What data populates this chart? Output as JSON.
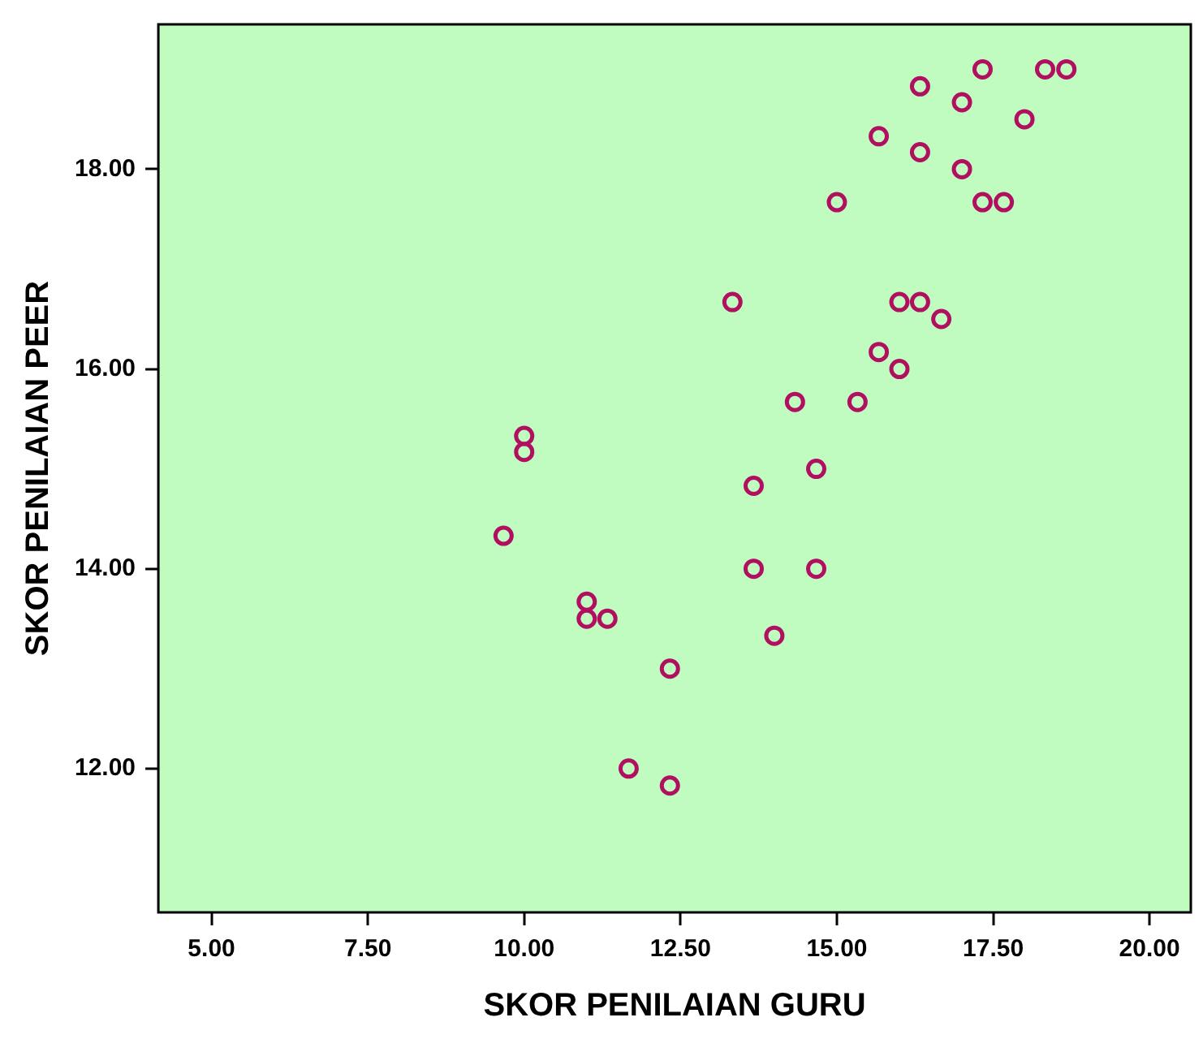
{
  "chart_data": {
    "type": "scatter",
    "xlabel": "SKOR PENILAIAN GURU",
    "ylabel": "SKOR PENILAIAN PEER",
    "x": [
      17.33,
      18.33,
      18.67,
      16.33,
      17.0,
      18.0,
      15.67,
      16.33,
      17.0,
      15.0,
      17.33,
      17.67,
      13.33,
      16.0,
      16.33,
      16.67,
      15.67,
      16.0,
      14.33,
      15.33,
      10.0,
      10.0,
      14.67,
      13.67,
      9.67,
      13.67,
      14.67,
      11.0,
      11.0,
      11.33,
      14.0,
      12.33,
      11.67,
      12.33
    ],
    "series": [
      {
        "color": "#b0105f",
        "values": [
          19.0,
          19.0,
          19.0,
          18.83,
          18.67,
          18.5,
          18.33,
          18.17,
          18.0,
          17.67,
          17.67,
          17.67,
          16.67,
          16.67,
          16.67,
          16.5,
          16.17,
          16.0,
          15.67,
          15.67,
          15.33,
          15.17,
          15.0,
          14.83,
          14.33,
          14.0,
          14.0,
          13.67,
          13.5,
          13.5,
          13.33,
          13.0,
          12.0,
          11.83
        ]
      }
    ],
    "xlim": [
      4.15,
      20.66
    ],
    "ylim": [
      10.56,
      19.45
    ],
    "xticks": [
      {
        "value": 5,
        "label": "5.00"
      },
      {
        "value": 7.5,
        "label": "7.50"
      },
      {
        "value": 10,
        "label": "10.00"
      },
      {
        "value": 12.5,
        "label": "12.50"
      },
      {
        "value": 15,
        "label": "15.00"
      },
      {
        "value": 17.5,
        "label": "17.50"
      },
      {
        "value": 20,
        "label": "20.00"
      }
    ],
    "yticks": [
      {
        "value": 12,
        "label": "12.00"
      },
      {
        "value": 14,
        "label": "14.00"
      },
      {
        "value": 16,
        "label": "16.00"
      },
      {
        "value": 18,
        "label": "18.00"
      }
    ],
    "grid": false,
    "legend": false,
    "marker": "circle"
  }
}
